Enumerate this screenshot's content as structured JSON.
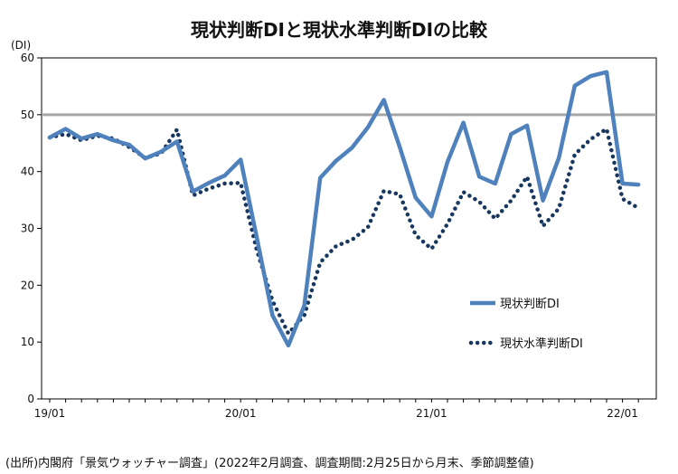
{
  "chart_data": {
    "type": "line",
    "title": "現状判断DIと現状水準判断DIの比較",
    "ylabel": "(DI)",
    "xlabel": "",
    "ylim": [
      0,
      60
    ],
    "yticks": [
      0,
      10,
      20,
      30,
      40,
      50,
      60
    ],
    "x_tick_labels": [
      "19/01",
      "20/01",
      "21/01",
      "22/01"
    ],
    "x_tick_index": [
      0,
      12,
      24,
      36
    ],
    "reference_line": {
      "value": 50,
      "color": "#a6a6a6"
    },
    "legend_position": "right-center",
    "series": [
      {
        "name": "現状判断DI",
        "style": "solid",
        "color": "#4f81bd",
        "values": [
          46.0,
          47.5,
          45.8,
          46.6,
          45.5,
          44.7,
          42.3,
          43.5,
          45.3,
          36.5,
          38.0,
          39.3,
          42.1,
          28.6,
          14.7,
          9.4,
          16.4,
          38.9,
          41.9,
          44.2,
          47.8,
          52.6,
          44.3,
          35.4,
          32.1,
          41.7,
          48.6,
          39.1,
          37.9,
          46.6,
          48.1,
          34.9,
          42.4,
          55.1,
          56.8,
          57.5,
          37.9,
          37.7
        ]
      },
      {
        "name": "現状水準判断DI",
        "style": "dotted",
        "color": "#17375e",
        "values": [
          46.0,
          46.6,
          45.5,
          46.3,
          45.8,
          44.3,
          42.4,
          43.2,
          47.4,
          35.8,
          37.0,
          37.9,
          38.0,
          26.3,
          17.3,
          11.5,
          14.7,
          24.0,
          26.9,
          28.0,
          30.2,
          36.6,
          36.0,
          28.8,
          26.4,
          30.8,
          36.4,
          34.7,
          31.7,
          34.9,
          39.1,
          30.4,
          33.5,
          43.0,
          45.7,
          47.5,
          35.2,
          33.6
        ]
      }
    ]
  },
  "source_note": "(出所)内閣府「景気ウォッチャー調査」(2022年2月調査、調査期間:2月25日から月末、季節調整値)"
}
